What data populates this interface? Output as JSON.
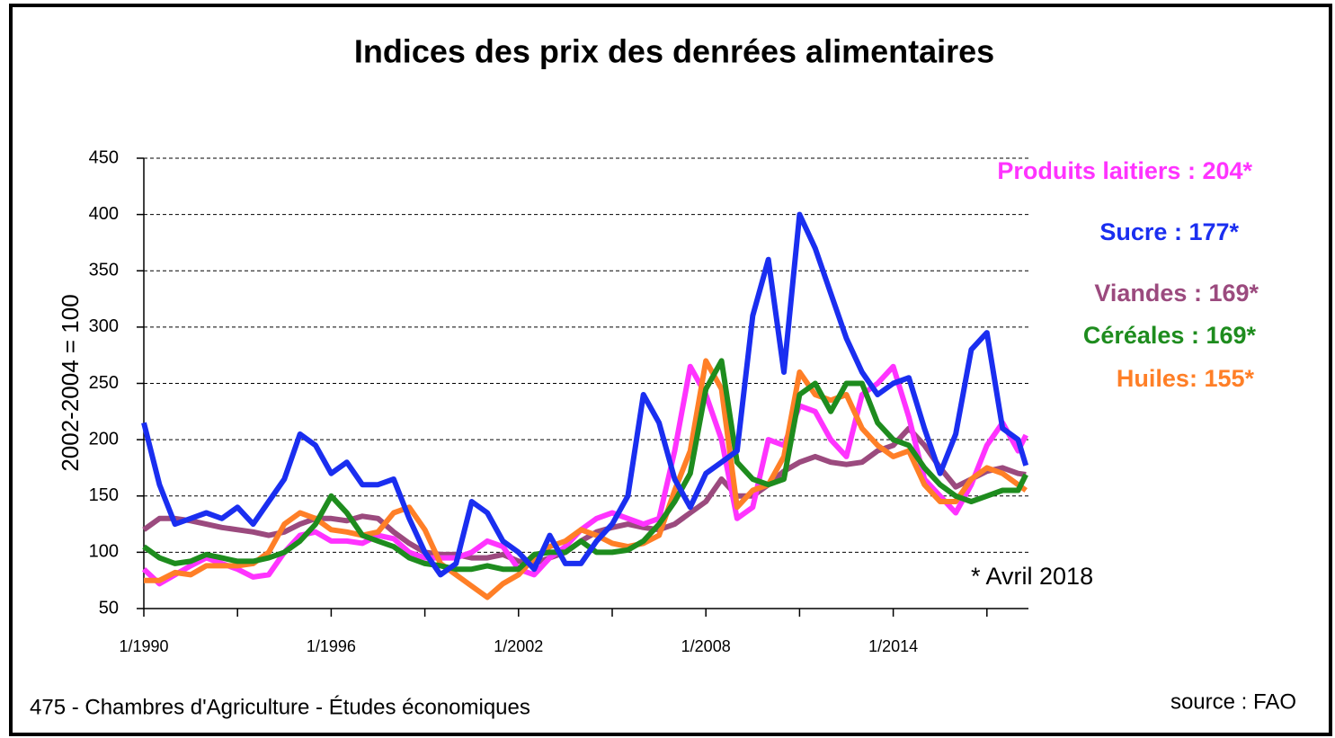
{
  "chart_data": {
    "type": "line",
    "title": "Indices des prix des denrées alimentaires",
    "y_label": "2002-2004 = 100",
    "annotation": "* Avril 2018",
    "footer": "475 - Chambres d'Agriculture - Études économiques",
    "source": "source : FAO",
    "x": [
      1990,
      1990.5,
      1991,
      1991.5,
      1992,
      1992.5,
      1993,
      1993.5,
      1994,
      1994.5,
      1995,
      1995.5,
      1996,
      1996.5,
      1997,
      1997.5,
      1998,
      1998.5,
      1999,
      1999.5,
      2000,
      2000.5,
      2001,
      2001.5,
      2002,
      2002.5,
      2003,
      2003.5,
      2004,
      2004.5,
      2005,
      2005.5,
      2006,
      2006.5,
      2007,
      2007.5,
      2008,
      2008.5,
      2009,
      2009.5,
      2010,
      2010.5,
      2011,
      2011.5,
      2012,
      2012.5,
      2013,
      2013.5,
      2014,
      2014.5,
      2015,
      2015.5,
      2016,
      2016.5,
      2017,
      2017.5,
      2018,
      2018.25
    ],
    "xlim": [
      1990,
      2018.33
    ],
    "xticks": [
      {
        "value": 1990,
        "label": "1/1990"
      },
      {
        "value": 1996,
        "label": "1/1996"
      },
      {
        "value": 2002,
        "label": "1/2002"
      },
      {
        "value": 2008,
        "label": "1/2008"
      },
      {
        "value": 2014,
        "label": "1/2014"
      }
    ],
    "xminor_ticks": [
      1993,
      1999,
      2005,
      2011,
      2017
    ],
    "ylim": [
      50,
      450
    ],
    "yticks": [
      50,
      100,
      150,
      200,
      250,
      300,
      350,
      400,
      450
    ],
    "grid": true,
    "series": [
      {
        "name": "Viandes : 169*",
        "color": "#9b4a7e",
        "values": [
          120,
          130,
          130,
          128,
          125,
          122,
          120,
          118,
          115,
          118,
          125,
          130,
          130,
          128,
          132,
          130,
          118,
          108,
          100,
          98,
          98,
          95,
          95,
          98,
          92,
          90,
          95,
          100,
          110,
          118,
          122,
          125,
          122,
          120,
          125,
          135,
          145,
          165,
          150,
          150,
          160,
          172,
          180,
          185,
          180,
          178,
          180,
          190,
          195,
          210,
          195,
          175,
          158,
          165,
          172,
          175,
          170,
          169
        ]
      },
      {
        "name": "Produits laitiers : 204*",
        "color": "#ff33ff",
        "values": [
          85,
          72,
          80,
          88,
          95,
          90,
          85,
          78,
          80,
          100,
          115,
          118,
          110,
          110,
          108,
          115,
          112,
          100,
          95,
          95,
          95,
          100,
          110,
          105,
          85,
          80,
          95,
          105,
          120,
          130,
          135,
          130,
          125,
          130,
          190,
          265,
          240,
          200,
          130,
          140,
          200,
          195,
          230,
          225,
          200,
          185,
          240,
          250,
          265,
          220,
          165,
          150,
          135,
          160,
          195,
          215,
          190,
          204
        ]
      },
      {
        "name": "Huiles: 155*",
        "color": "#ff7f27",
        "values": [
          75,
          75,
          82,
          80,
          88,
          88,
          88,
          90,
          100,
          125,
          135,
          130,
          120,
          118,
          115,
          118,
          135,
          140,
          120,
          90,
          80,
          70,
          60,
          72,
          80,
          95,
          105,
          110,
          120,
          115,
          108,
          105,
          108,
          115,
          155,
          190,
          270,
          245,
          140,
          155,
          160,
          185,
          260,
          240,
          235,
          240,
          210,
          195,
          185,
          190,
          160,
          145,
          145,
          165,
          175,
          170,
          160,
          155
        ]
      },
      {
        "name": "Céréales : 169*",
        "color": "#1e8c1e",
        "values": [
          105,
          95,
          90,
          92,
          98,
          95,
          92,
          92,
          95,
          100,
          110,
          125,
          150,
          135,
          115,
          110,
          105,
          95,
          90,
          88,
          85,
          85,
          88,
          85,
          85,
          98,
          100,
          100,
          110,
          100,
          100,
          102,
          110,
          125,
          145,
          170,
          245,
          270,
          180,
          165,
          160,
          165,
          240,
          250,
          225,
          250,
          250,
          215,
          200,
          195,
          175,
          160,
          150,
          145,
          150,
          155,
          155,
          169
        ]
      },
      {
        "name": "Sucre : 177*",
        "color": "#1a2ef0",
        "values": [
          215,
          160,
          125,
          130,
          135,
          130,
          140,
          125,
          145,
          165,
          205,
          195,
          170,
          180,
          160,
          160,
          165,
          130,
          100,
          80,
          90,
          145,
          135,
          110,
          100,
          85,
          115,
          90,
          90,
          110,
          125,
          150,
          240,
          215,
          165,
          140,
          170,
          180,
          190,
          310,
          360,
          260,
          400,
          370,
          330,
          290,
          260,
          240,
          250,
          255,
          210,
          170,
          205,
          280,
          295,
          210,
          200,
          177
        ]
      }
    ]
  }
}
